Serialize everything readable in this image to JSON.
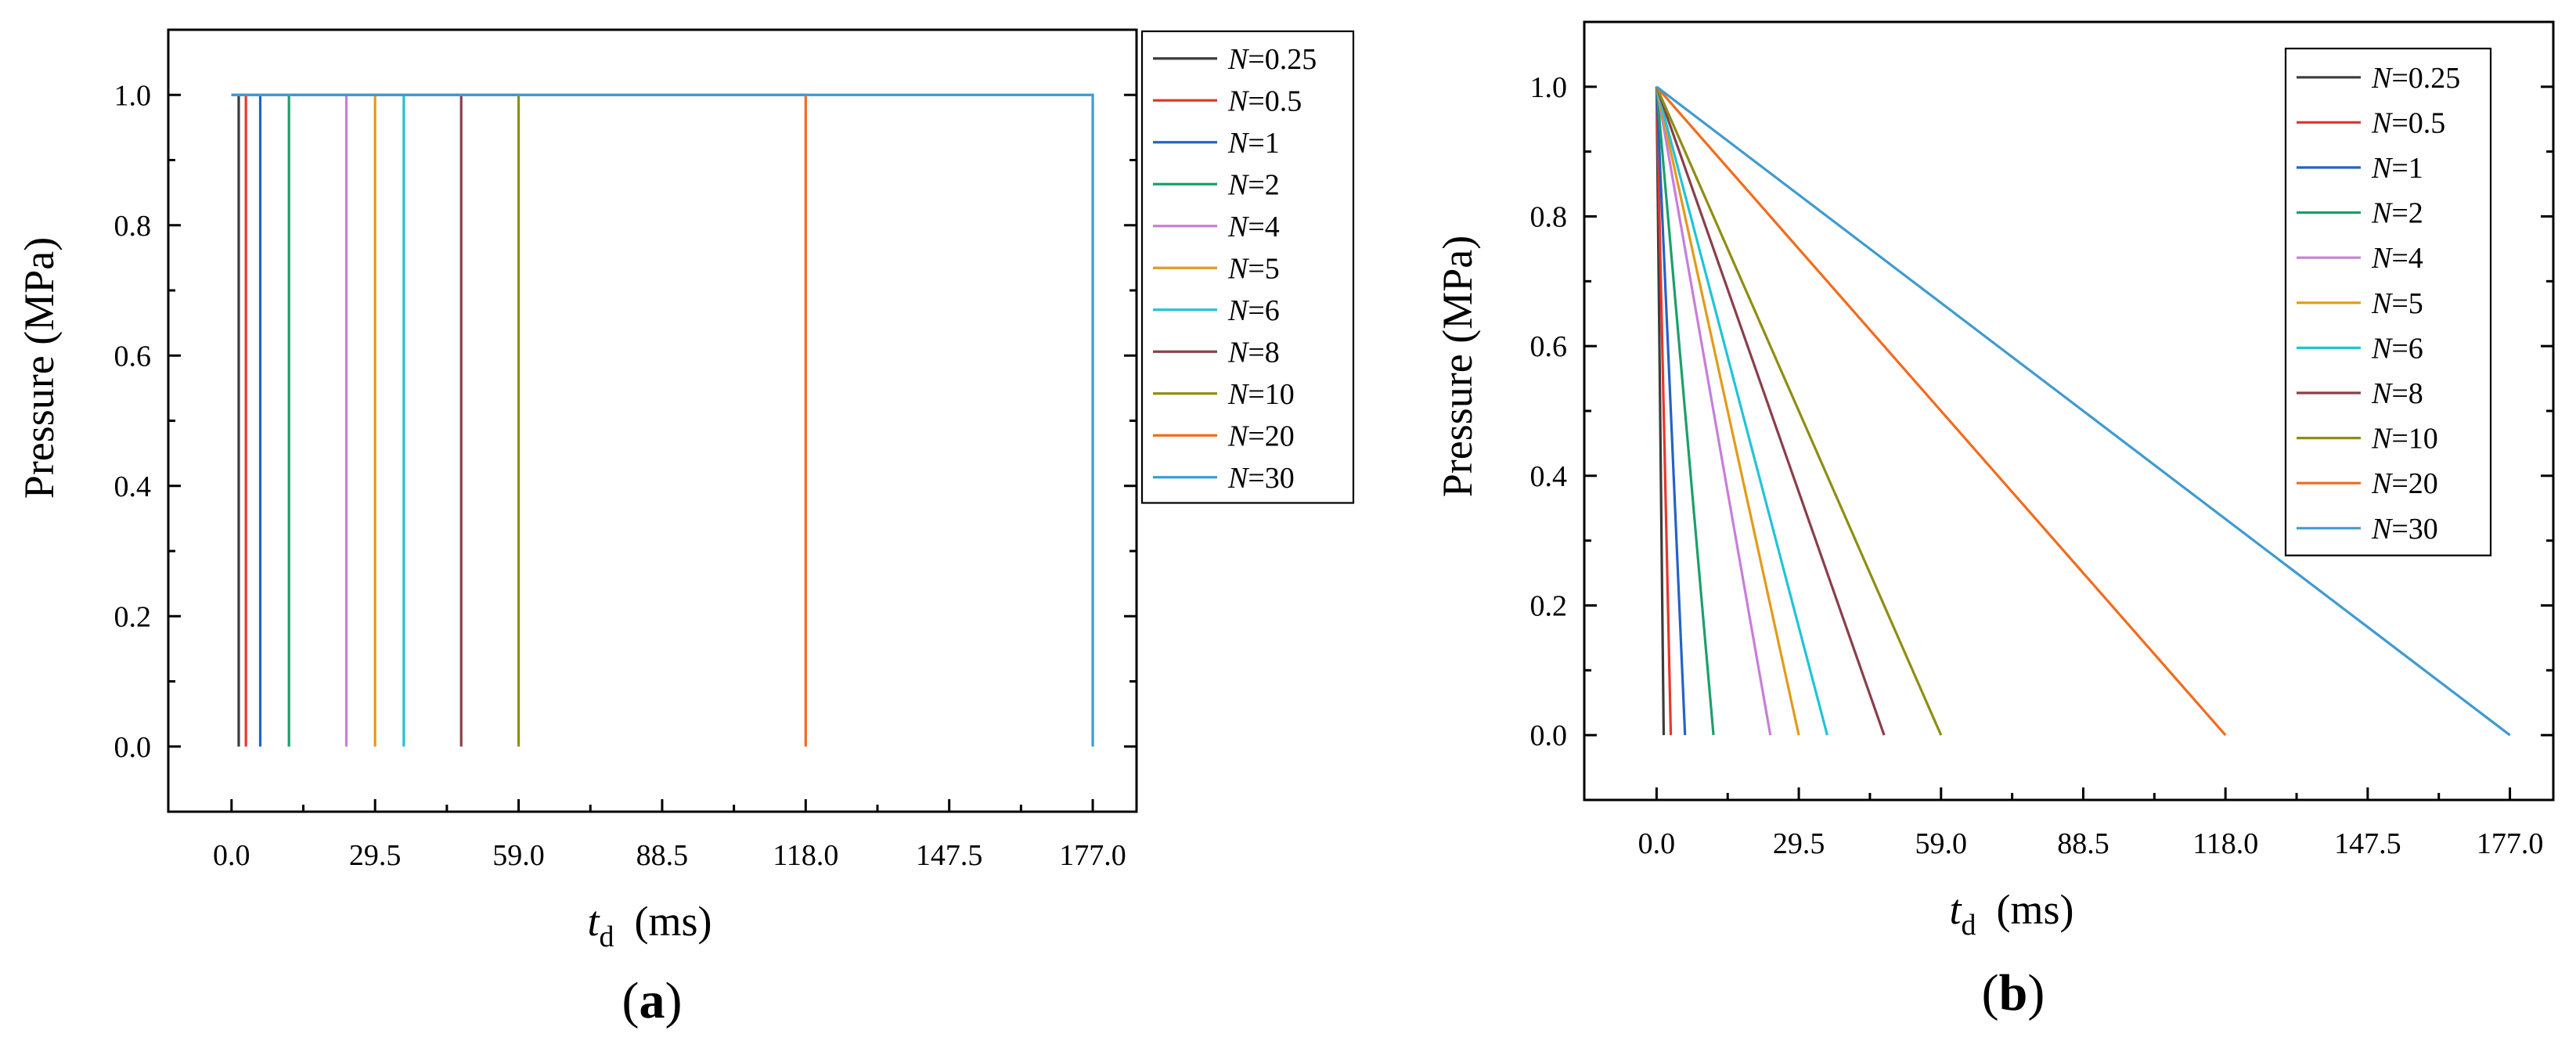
{
  "figure": {
    "panels": [
      {
        "label_prefix": "(",
        "label_letter": "a",
        "label_suffix": ")"
      },
      {
        "label_prefix": "(",
        "label_letter": "b",
        "label_suffix": ")"
      }
    ]
  },
  "chart_data": [
    {
      "type": "line",
      "panel": "a",
      "title": "",
      "ylabel": "Pressure (MPa)",
      "xlabel_symbol": "t",
      "xlabel_subscript": "d",
      "xlabel_unit": "(ms)",
      "xlim": [
        -13,
        186
      ],
      "ylim": [
        -0.1,
        1.1
      ],
      "xticks": [
        0.0,
        29.5,
        59.0,
        88.5,
        118.0,
        147.5,
        177.0
      ],
      "xtick_labels": [
        "0.0",
        "29.5",
        "59.0",
        "88.5",
        "118.0",
        "147.5",
        "177.0"
      ],
      "yticks": [
        0.0,
        0.2,
        0.4,
        0.6,
        0.8,
        1.0
      ],
      "ytick_labels": [
        "0.0",
        "0.2",
        "0.4",
        "0.6",
        "0.8",
        "1.0"
      ],
      "legend_position": "outside-right-top",
      "series": [
        {
          "name_var": "N",
          "name_val": "=0.25",
          "color": "#3c3c3c",
          "x": [
            0,
            1.475,
            1.475
          ],
          "y": [
            1,
            1,
            0
          ]
        },
        {
          "name_var": "N",
          "name_val": "=0.5",
          "color": "#e8362d",
          "x": [
            0,
            2.95,
            2.95
          ],
          "y": [
            1,
            1,
            0
          ]
        },
        {
          "name_var": "N",
          "name_val": "=1",
          "color": "#2462c8",
          "x": [
            0,
            5.9,
            5.9
          ],
          "y": [
            1,
            1,
            0
          ]
        },
        {
          "name_var": "N",
          "name_val": "=2",
          "color": "#1aa06b",
          "x": [
            0,
            11.8,
            11.8
          ],
          "y": [
            1,
            1,
            0
          ]
        },
        {
          "name_var": "N",
          "name_val": "=4",
          "color": "#c77ed9",
          "x": [
            0,
            23.6,
            23.6
          ],
          "y": [
            1,
            1,
            0
          ]
        },
        {
          "name_var": "N",
          "name_val": "=5",
          "color": "#e39a1a",
          "x": [
            0,
            29.5,
            29.5
          ],
          "y": [
            1,
            1,
            0
          ]
        },
        {
          "name_var": "N",
          "name_val": "=6",
          "color": "#20c4d8",
          "x": [
            0,
            35.4,
            35.4
          ],
          "y": [
            1,
            1,
            0
          ]
        },
        {
          "name_var": "N",
          "name_val": "=8",
          "color": "#8a3f4a",
          "x": [
            0,
            47.2,
            47.2
          ],
          "y": [
            1,
            1,
            0
          ]
        },
        {
          "name_var": "N",
          "name_val": "=10",
          "color": "#8e8e12",
          "x": [
            0,
            59.0,
            59.0
          ],
          "y": [
            1,
            1,
            0
          ]
        },
        {
          "name_var": "N",
          "name_val": "=20",
          "color": "#f26b1d",
          "x": [
            0,
            118.0,
            118.0
          ],
          "y": [
            1,
            1,
            0
          ]
        },
        {
          "name_var": "N",
          "name_val": "=30",
          "color": "#3f9bd0",
          "x": [
            0,
            177.0,
            177.0
          ],
          "y": [
            1,
            1,
            0
          ]
        }
      ]
    },
    {
      "type": "line",
      "panel": "b",
      "title": "",
      "ylabel": "Pressure (MPa)",
      "xlabel_symbol": "t",
      "xlabel_subscript": "d",
      "xlabel_unit": "(ms)",
      "xlim": [
        -15,
        186
      ],
      "ylim": [
        -0.1,
        1.1
      ],
      "xticks": [
        0.0,
        29.5,
        59.0,
        88.5,
        118.0,
        147.5,
        177.0
      ],
      "xtick_labels": [
        "0.0",
        "29.5",
        "59.0",
        "88.5",
        "118.0",
        "147.5",
        "177.0"
      ],
      "yticks": [
        0.0,
        0.2,
        0.4,
        0.6,
        0.8,
        1.0
      ],
      "ytick_labels": [
        "0.0",
        "0.2",
        "0.4",
        "0.6",
        "0.8",
        "1.0"
      ],
      "legend_position": "inside-top-right",
      "series": [
        {
          "name_var": "N",
          "name_val": "=0.25",
          "color": "#3c3c3c",
          "x": [
            0,
            1.475
          ],
          "y": [
            1,
            0
          ]
        },
        {
          "name_var": "N",
          "name_val": "=0.5",
          "color": "#e8362d",
          "x": [
            0,
            2.95
          ],
          "y": [
            1,
            0
          ]
        },
        {
          "name_var": "N",
          "name_val": "=1",
          "color": "#2462c8",
          "x": [
            0,
            5.9
          ],
          "y": [
            1,
            0
          ]
        },
        {
          "name_var": "N",
          "name_val": "=2",
          "color": "#1aa06b",
          "x": [
            0,
            11.8
          ],
          "y": [
            1,
            0
          ]
        },
        {
          "name_var": "N",
          "name_val": "=4",
          "color": "#c77ed9",
          "x": [
            0,
            23.6
          ],
          "y": [
            1,
            0
          ]
        },
        {
          "name_var": "N",
          "name_val": "=5",
          "color": "#e39a1a",
          "x": [
            0,
            29.5
          ],
          "y": [
            1,
            0
          ]
        },
        {
          "name_var": "N",
          "name_val": "=6",
          "color": "#20c4d8",
          "x": [
            0,
            35.4
          ],
          "y": [
            1,
            0
          ]
        },
        {
          "name_var": "N",
          "name_val": "=8",
          "color": "#8a3f4a",
          "x": [
            0,
            47.2
          ],
          "y": [
            1,
            0
          ]
        },
        {
          "name_var": "N",
          "name_val": "=10",
          "color": "#8e8e12",
          "x": [
            0,
            59.0
          ],
          "y": [
            1,
            0
          ]
        },
        {
          "name_var": "N",
          "name_val": "=20",
          "color": "#f26b1d",
          "x": [
            0,
            118.0
          ],
          "y": [
            1,
            0
          ]
        },
        {
          "name_var": "N",
          "name_val": "=30",
          "color": "#3f9bd0",
          "x": [
            0,
            177.0
          ],
          "y": [
            1,
            0
          ]
        }
      ]
    }
  ]
}
